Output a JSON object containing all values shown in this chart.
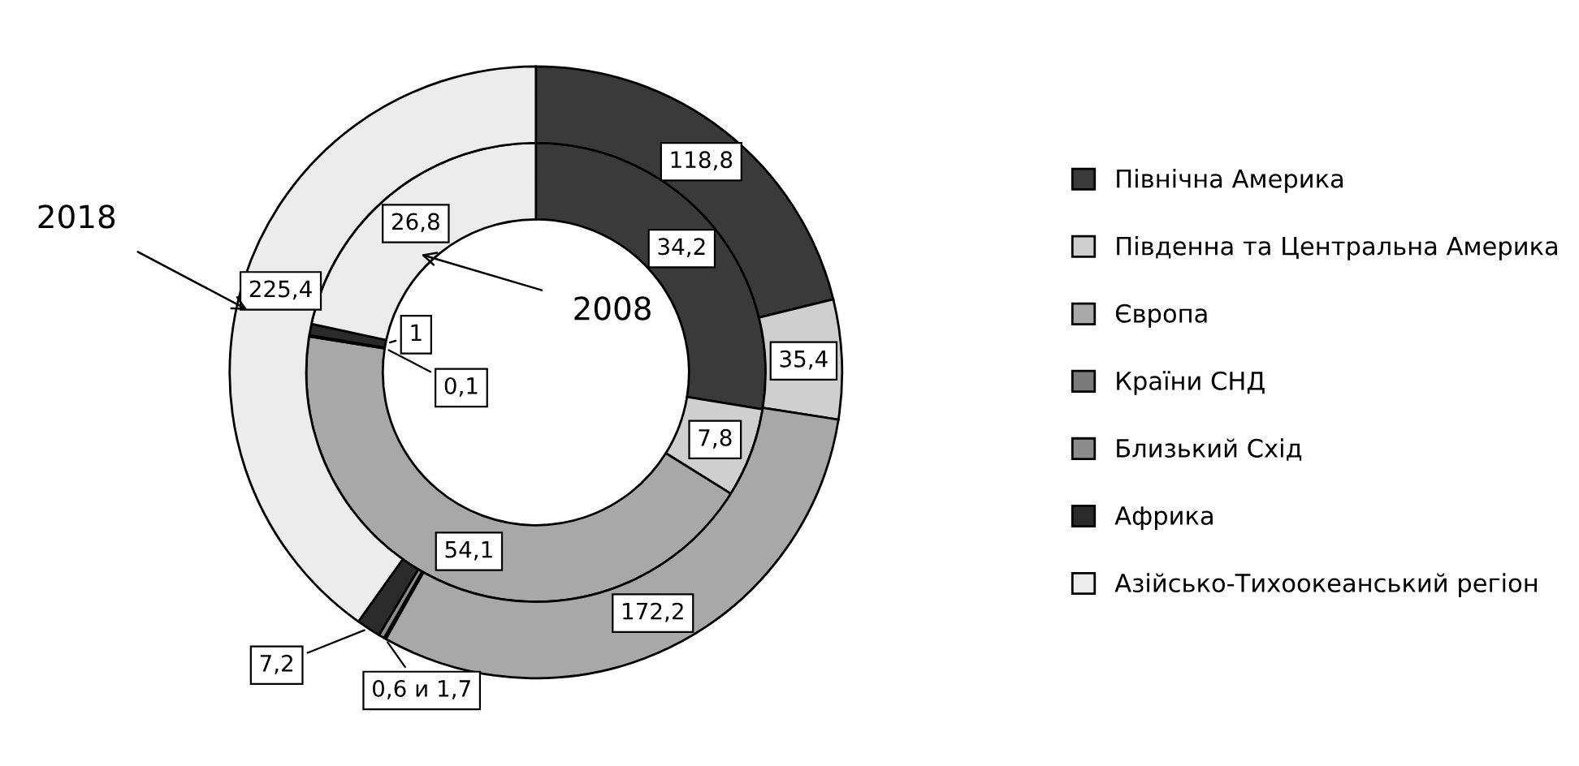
{
  "chart_data": {
    "type": "donut",
    "categories": [
      "Північна Америка",
      "Південна та Центральна Америка",
      "Європа",
      "Країни СНД",
      "Близький Схід",
      "Африка",
      "Азійсько-Тихоокеанський регіон"
    ],
    "colors": [
      "#3a3a3a",
      "#cfcfcf",
      "#a8a8a8",
      "#7a7a7a",
      "#8c8c8c",
      "#2a2a2a",
      "#ececec"
    ],
    "series": [
      {
        "name": "2008",
        "values": [
          34.2,
          7.8,
          54.1,
          0.1,
          null,
          1,
          26.8
        ],
        "value_labels": [
          "34,2",
          "7,8",
          "54,1",
          "0,1",
          null,
          "1",
          "26,8"
        ]
      },
      {
        "name": "2018",
        "values": [
          118.8,
          35.4,
          172.2,
          0.6,
          1.7,
          7.2,
          225.4
        ],
        "value_labels": [
          "118,8",
          "35,4",
          "172,2",
          "0,6 и 1,7",
          null,
          "7,2",
          "225,4"
        ]
      }
    ],
    "legend": "right"
  }
}
